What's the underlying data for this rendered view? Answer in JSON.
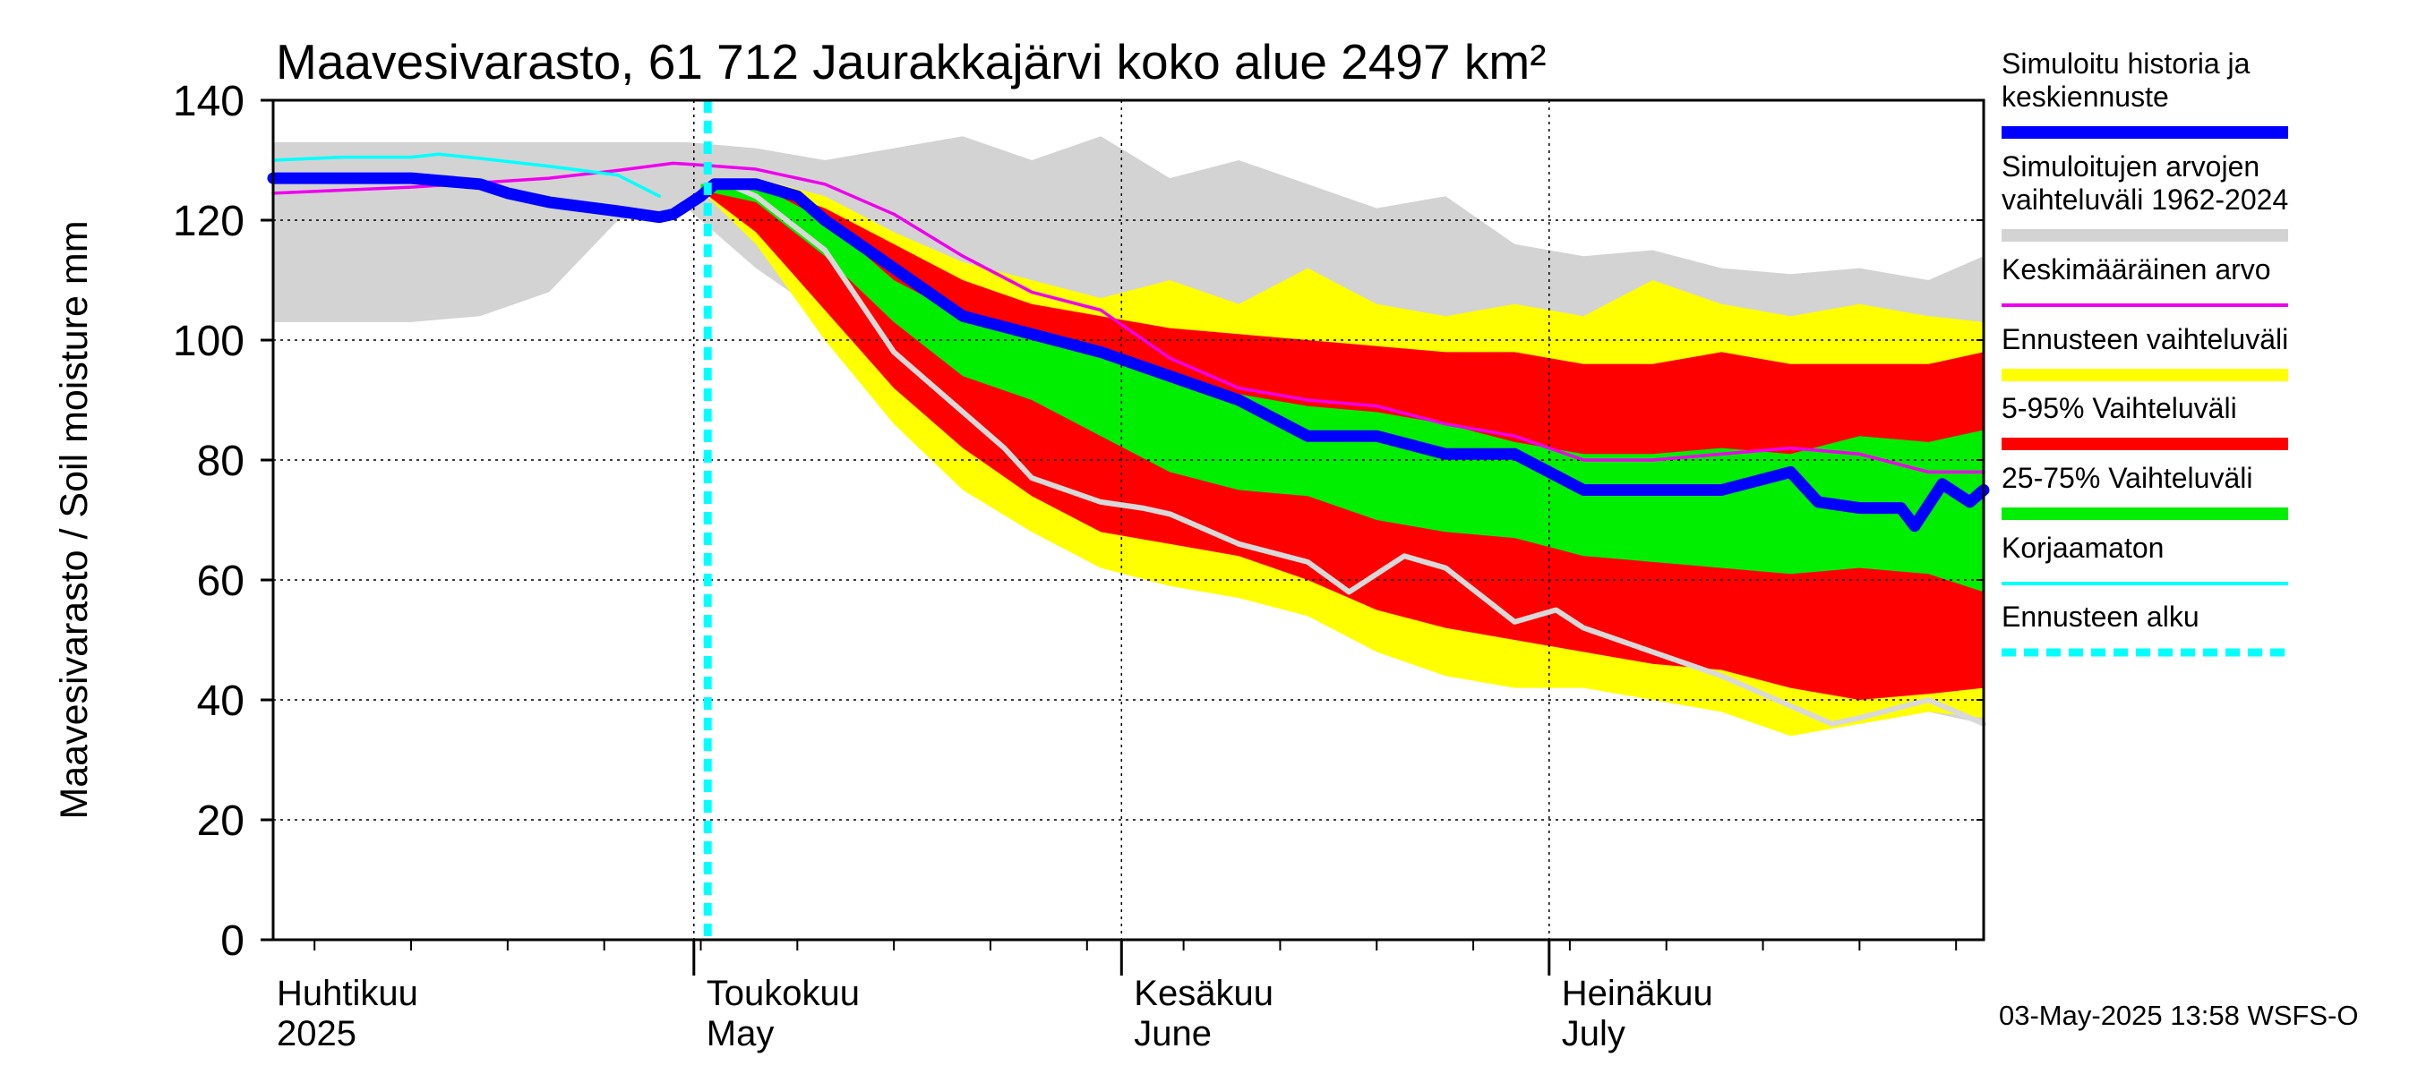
{
  "chart_data": {
    "type": "area",
    "title": "Maavesivarasto, 61 712 Jaurakkajärvi koko alue 2497 km²",
    "ylabel": "Maavesivarasto / Soil moisture   mm",
    "ylim": [
      0,
      140
    ],
    "yticks": [
      0,
      20,
      40,
      60,
      80,
      100,
      120,
      140
    ],
    "xlim": [
      0,
      124
    ],
    "x_unit": "days since 2025-03-30",
    "forecast_start_x": 31.5,
    "month_labels": [
      {
        "x": 0,
        "fi": "Huhtikuu",
        "en": "2025"
      },
      {
        "x": 30.5,
        "fi": "Toukokuu",
        "en": "May"
      },
      {
        "x": 61.5,
        "fi": "Kesäkuu",
        "en": "June"
      },
      {
        "x": 92.5,
        "fi": "Heinäkuu",
        "en": "July"
      }
    ],
    "series": [
      {
        "name": "Simuloitujen arvojen vaihteluväli 1962-2024",
        "kind": "band",
        "color": "#d3d3d3",
        "upper": [
          [
            0,
            133
          ],
          [
            15,
            133
          ],
          [
            30,
            133
          ],
          [
            35,
            132
          ],
          [
            40,
            130
          ],
          [
            45,
            132
          ],
          [
            50,
            134
          ],
          [
            55,
            130
          ],
          [
            60,
            134
          ],
          [
            65,
            127
          ],
          [
            70,
            130
          ],
          [
            75,
            126
          ],
          [
            80,
            122
          ],
          [
            85,
            124
          ],
          [
            90,
            116
          ],
          [
            95,
            114
          ],
          [
            100,
            115
          ],
          [
            105,
            112
          ],
          [
            110,
            111
          ],
          [
            115,
            112
          ],
          [
            120,
            110
          ],
          [
            124,
            114
          ]
        ],
        "lower": [
          [
            0,
            103
          ],
          [
            10,
            103
          ],
          [
            15,
            104
          ],
          [
            20,
            108
          ],
          [
            25,
            120
          ],
          [
            30,
            122
          ],
          [
            35,
            112
          ],
          [
            40,
            104
          ],
          [
            45,
            92
          ],
          [
            50,
            82
          ],
          [
            55,
            74
          ],
          [
            60,
            72
          ],
          [
            65,
            70
          ],
          [
            70,
            64
          ],
          [
            75,
            62
          ],
          [
            80,
            58
          ],
          [
            85,
            52
          ],
          [
            90,
            48
          ],
          [
            95,
            46
          ],
          [
            100,
            42
          ],
          [
            105,
            40
          ],
          [
            110,
            38
          ],
          [
            115,
            36
          ],
          [
            120,
            38
          ],
          [
            124,
            36
          ]
        ]
      },
      {
        "name": "Ennusteen vaihteluväli",
        "kind": "band",
        "color": "#ffff00",
        "upper": [
          [
            31,
            126
          ],
          [
            35,
            127
          ],
          [
            40,
            124
          ],
          [
            45,
            118
          ],
          [
            50,
            113
          ],
          [
            55,
            110
          ],
          [
            60,
            107
          ],
          [
            65,
            110
          ],
          [
            70,
            106
          ],
          [
            75,
            112
          ],
          [
            80,
            106
          ],
          [
            85,
            104
          ],
          [
            90,
            106
          ],
          [
            95,
            104
          ],
          [
            100,
            110
          ],
          [
            105,
            106
          ],
          [
            110,
            104
          ],
          [
            115,
            106
          ],
          [
            120,
            104
          ],
          [
            124,
            103
          ]
        ],
        "lower": [
          [
            31,
            125
          ],
          [
            35,
            116
          ],
          [
            40,
            100
          ],
          [
            45,
            86
          ],
          [
            50,
            75
          ],
          [
            55,
            68
          ],
          [
            60,
            62
          ],
          [
            65,
            59
          ],
          [
            70,
            57
          ],
          [
            75,
            54
          ],
          [
            80,
            48
          ],
          [
            85,
            44
          ],
          [
            90,
            42
          ],
          [
            95,
            42
          ],
          [
            100,
            40
          ],
          [
            105,
            38
          ],
          [
            110,
            34
          ],
          [
            115,
            36
          ],
          [
            120,
            38
          ],
          [
            124,
            37
          ]
        ]
      },
      {
        "name": "5-95% Vaihteluväli",
        "kind": "band",
        "color": "#ff0000",
        "upper": [
          [
            31,
            126
          ],
          [
            35,
            126
          ],
          [
            40,
            122
          ],
          [
            45,
            116
          ],
          [
            50,
            110
          ],
          [
            55,
            106
          ],
          [
            60,
            104
          ],
          [
            65,
            102
          ],
          [
            70,
            101
          ],
          [
            75,
            100
          ],
          [
            80,
            99
          ],
          [
            85,
            98
          ],
          [
            90,
            98
          ],
          [
            95,
            96
          ],
          [
            100,
            96
          ],
          [
            105,
            98
          ],
          [
            110,
            96
          ],
          [
            115,
            96
          ],
          [
            120,
            96
          ],
          [
            124,
            98
          ]
        ],
        "lower": [
          [
            31,
            125
          ],
          [
            35,
            118
          ],
          [
            40,
            105
          ],
          [
            45,
            92
          ],
          [
            50,
            82
          ],
          [
            55,
            74
          ],
          [
            60,
            68
          ],
          [
            65,
            66
          ],
          [
            70,
            64
          ],
          [
            75,
            60
          ],
          [
            80,
            55
          ],
          [
            85,
            52
          ],
          [
            90,
            50
          ],
          [
            95,
            48
          ],
          [
            100,
            46
          ],
          [
            105,
            45
          ],
          [
            110,
            42
          ],
          [
            115,
            40
          ],
          [
            120,
            41
          ],
          [
            124,
            42
          ]
        ]
      },
      {
        "name": "25-75% Vaihteluväli",
        "kind": "band",
        "color": "#00ee00",
        "upper": [
          [
            31,
            126
          ],
          [
            35,
            126
          ],
          [
            40,
            120
          ],
          [
            45,
            110
          ],
          [
            50,
            104
          ],
          [
            55,
            102
          ],
          [
            60,
            99
          ],
          [
            65,
            95
          ],
          [
            70,
            91
          ],
          [
            75,
            89
          ],
          [
            80,
            88
          ],
          [
            85,
            86
          ],
          [
            90,
            83
          ],
          [
            95,
            81
          ],
          [
            100,
            81
          ],
          [
            105,
            82
          ],
          [
            110,
            81
          ],
          [
            115,
            84
          ],
          [
            120,
            83
          ],
          [
            124,
            85
          ]
        ],
        "lower": [
          [
            31,
            125
          ],
          [
            35,
            123
          ],
          [
            40,
            114
          ],
          [
            45,
            103
          ],
          [
            50,
            94
          ],
          [
            55,
            90
          ],
          [
            60,
            84
          ],
          [
            65,
            78
          ],
          [
            70,
            75
          ],
          [
            75,
            74
          ],
          [
            80,
            70
          ],
          [
            85,
            68
          ],
          [
            90,
            67
          ],
          [
            95,
            64
          ],
          [
            100,
            63
          ],
          [
            105,
            62
          ],
          [
            110,
            61
          ],
          [
            115,
            62
          ],
          [
            120,
            61
          ],
          [
            124,
            58
          ]
        ]
      },
      {
        "name": "Keskimääräinen arvo",
        "kind": "line",
        "color": "#ee00ee",
        "points": [
          [
            0,
            124.5
          ],
          [
            10,
            125.5
          ],
          [
            20,
            127
          ],
          [
            25,
            128.3
          ],
          [
            29,
            129.5
          ],
          [
            31,
            129.2
          ],
          [
            35,
            128.5
          ],
          [
            40,
            126
          ],
          [
            45,
            121
          ],
          [
            50,
            114
          ],
          [
            55,
            108
          ],
          [
            60,
            105
          ],
          [
            65,
            97
          ],
          [
            70,
            92
          ],
          [
            75,
            90
          ],
          [
            80,
            89
          ],
          [
            85,
            86
          ],
          [
            90,
            84
          ],
          [
            95,
            80
          ],
          [
            100,
            80
          ],
          [
            105,
            81
          ],
          [
            110,
            82
          ],
          [
            115,
            81
          ],
          [
            120,
            78
          ],
          [
            124,
            78
          ]
        ]
      },
      {
        "name": "Korjaamaton",
        "kind": "line",
        "color": "#00ffff",
        "points": [
          [
            0,
            130
          ],
          [
            5,
            130.5
          ],
          [
            10,
            130.5
          ],
          [
            12,
            131
          ],
          [
            15,
            130.3
          ],
          [
            20,
            129
          ],
          [
            25,
            127.5
          ],
          [
            28,
            124
          ]
        ]
      },
      {
        "name": "history_grey",
        "kind": "line",
        "color": "#d9d9d9",
        "points": [
          [
            33,
            126
          ],
          [
            35,
            124
          ],
          [
            40,
            115
          ],
          [
            45,
            98
          ],
          [
            50,
            88
          ],
          [
            53,
            82
          ],
          [
            55,
            77
          ],
          [
            60,
            73
          ],
          [
            63,
            72
          ],
          [
            65,
            71
          ],
          [
            70,
            66
          ],
          [
            75,
            63
          ],
          [
            78,
            58
          ],
          [
            82,
            64
          ],
          [
            85,
            62
          ],
          [
            90,
            53
          ],
          [
            93,
            55
          ],
          [
            95,
            52
          ],
          [
            100,
            48
          ],
          [
            105,
            44
          ],
          [
            110,
            39
          ],
          [
            113,
            36
          ],
          [
            115,
            37
          ],
          [
            120,
            40
          ],
          [
            124,
            36
          ]
        ]
      },
      {
        "name": "Simuloitu historia ja keskiennuste",
        "kind": "line",
        "color": "#0000ff",
        "points": [
          [
            0,
            127
          ],
          [
            10,
            127
          ],
          [
            15,
            126
          ],
          [
            17,
            124.5
          ],
          [
            20,
            123
          ],
          [
            25,
            121.5
          ],
          [
            28,
            120.5
          ],
          [
            29,
            121
          ],
          [
            31,
            124
          ],
          [
            32,
            126
          ],
          [
            35,
            126
          ],
          [
            38,
            124
          ],
          [
            40,
            120
          ],
          [
            45,
            112
          ],
          [
            50,
            104
          ],
          [
            55,
            101
          ],
          [
            60,
            98
          ],
          [
            65,
            94
          ],
          [
            70,
            90
          ],
          [
            75,
            84
          ],
          [
            80,
            84
          ],
          [
            85,
            81
          ],
          [
            90,
            81
          ],
          [
            95,
            75
          ],
          [
            100,
            75
          ],
          [
            105,
            75
          ],
          [
            110,
            78
          ],
          [
            112,
            73
          ],
          [
            115,
            72
          ],
          [
            118,
            72
          ],
          [
            119,
            69
          ],
          [
            121,
            76
          ],
          [
            123,
            73
          ],
          [
            124,
            75
          ]
        ]
      }
    ],
    "legend": [
      {
        "label": "Simuloitu historia ja keskiennuste",
        "color": "#0000ff",
        "style": "thick"
      },
      {
        "label": "Simuloitujen arvojen vaihteluväli 1962-2024",
        "color": "#d3d3d3",
        "style": "thick"
      },
      {
        "label": "Keskimääräinen arvo",
        "color": "#ee00ee",
        "style": "thin"
      },
      {
        "label": "Ennusteen vaihteluväli",
        "color": "#ffff00",
        "style": "thick"
      },
      {
        "label": "5-95% Vaihteluväli",
        "color": "#ff0000",
        "style": "thick"
      },
      {
        "label": "25-75% Vaihteluväli",
        "color": "#00ee00",
        "style": "thick"
      },
      {
        "label": "Korjaamaton",
        "color": "#00ffff",
        "style": "thin"
      },
      {
        "label": "Ennusteen alku",
        "color": "#00ffff",
        "style": "dashed"
      }
    ],
    "legend_position": "right",
    "footer": "03-May-2025 13:58 WSFS-O"
  }
}
